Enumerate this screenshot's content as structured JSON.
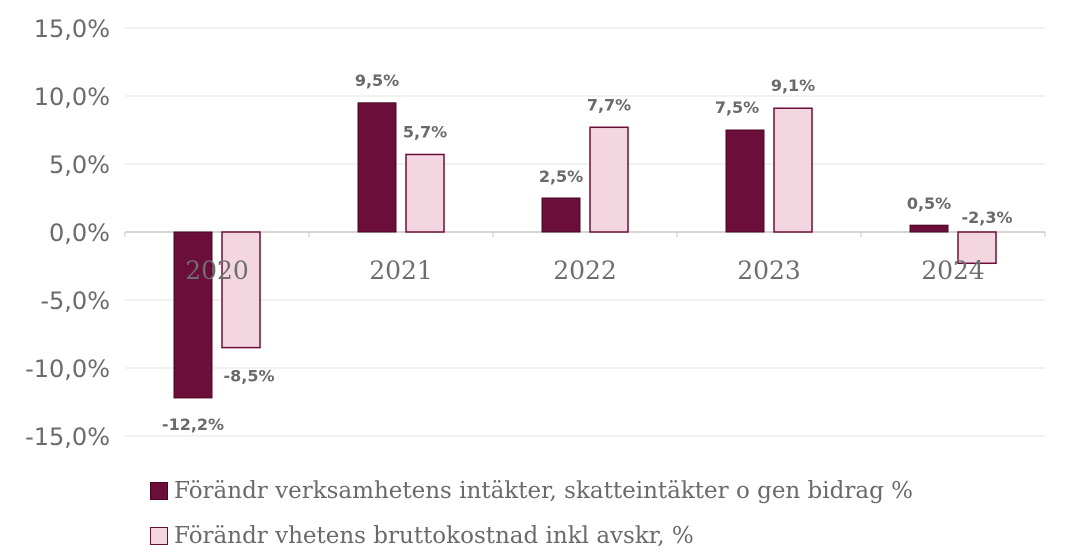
{
  "chart_data": {
    "type": "bar",
    "categories": [
      "2020",
      "2021",
      "2022",
      "2023",
      "2024"
    ],
    "series": [
      {
        "name": "Förändr verksamhetens intäkter, skatteintäkter o gen bidrag %",
        "values": [
          -12.2,
          9.5,
          2.5,
          7.5,
          0.5
        ],
        "labels": [
          "-12,2%",
          "9,5%",
          "2,5%",
          "7,5%",
          "0,5%"
        ],
        "color": "#6b0f3a",
        "border": "#4a0626"
      },
      {
        "name": "Förändr vhetens bruttokostnad inkl avskr, %",
        "values": [
          -8.5,
          5.7,
          7.7,
          9.1,
          -2.3
        ],
        "labels": [
          "-8,5%",
          "5,7%",
          "7,7%",
          "9,1%",
          "-2,3%"
        ],
        "color": "#f3d6df",
        "border": "#6b0f3a"
      }
    ],
    "yticks": [
      15,
      10,
      5,
      0,
      -5,
      -10,
      -15
    ],
    "ytick_labels": [
      "15,0%",
      "10,0%",
      "5,0%",
      "0,0%",
      "-5,0%",
      "-10,0%",
      "-15,0%"
    ],
    "ylim": [
      -15,
      15
    ],
    "grid": true,
    "legend_position": "bottom",
    "title": "",
    "xlabel": "",
    "ylabel": ""
  }
}
